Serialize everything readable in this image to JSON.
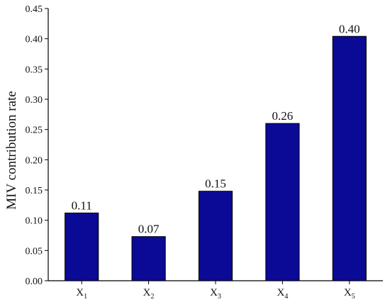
{
  "chart_data": {
    "type": "bar",
    "title": "",
    "xlabel": "",
    "ylabel": "MIV contribution rate",
    "categories": [
      {
        "base": "X",
        "sub": "1"
      },
      {
        "base": "X",
        "sub": "2"
      },
      {
        "base": "X",
        "sub": "3"
      },
      {
        "base": "X",
        "sub": "4"
      },
      {
        "base": "X",
        "sub": "5"
      }
    ],
    "values": [
      0.112,
      0.073,
      0.148,
      0.26,
      0.404
    ],
    "data_labels": [
      "0.11",
      "0.07",
      "0.15",
      "0.26",
      "0.40"
    ],
    "ylim": [
      0,
      0.45
    ],
    "yticks": [
      "0.00",
      "0.05",
      "0.10",
      "0.15",
      "0.20",
      "0.25",
      "0.30",
      "0.35",
      "0.40",
      "0.45"
    ],
    "bar_color": "#0a0a96",
    "grid": false,
    "legend": "none"
  }
}
